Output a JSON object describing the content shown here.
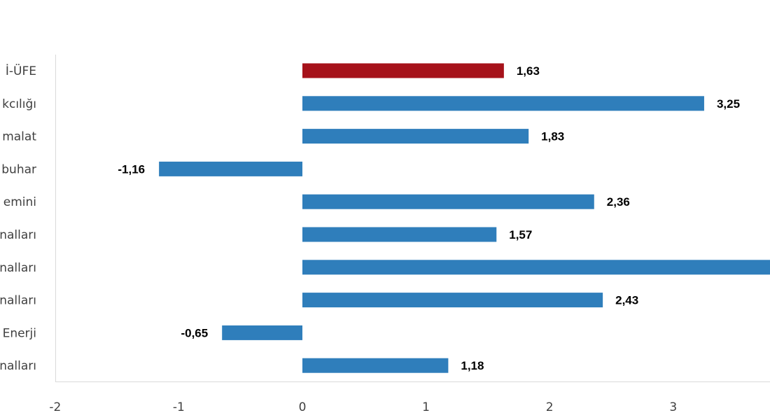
{
  "chart_data": {
    "type": "bar",
    "orientation": "horizontal",
    "categories": [
      "İ-ÜFE",
      "kcılığı",
      "malat",
      "buhar",
      "emini",
      "nalları",
      "nalları",
      "nalları",
      "Enerji",
      "nalları"
    ],
    "values": [
      1.63,
      3.25,
      1.83,
      -1.16,
      2.36,
      1.57,
      4.0,
      2.43,
      -0.65,
      1.18
    ],
    "data_labels": [
      "1,63",
      "3,25",
      "1,83",
      "-1,16",
      "2,36",
      "1,57",
      "",
      "2,43",
      "-0,65",
      "1,18"
    ],
    "colors": [
      "#A6121A",
      "#2F7EBB",
      "#2F7EBB",
      "#2F7EBB",
      "#2F7EBB",
      "#2F7EBB",
      "#2F7EBB",
      "#2F7EBB",
      "#2F7EBB",
      "#2F7EBB"
    ],
    "x_ticks": [
      "-2",
      "-1",
      "0",
      "1",
      "2",
      "3"
    ],
    "xlim": [
      -2,
      3.8
    ],
    "grid": false,
    "title": "",
    "xlabel": "",
    "ylabel": ""
  }
}
